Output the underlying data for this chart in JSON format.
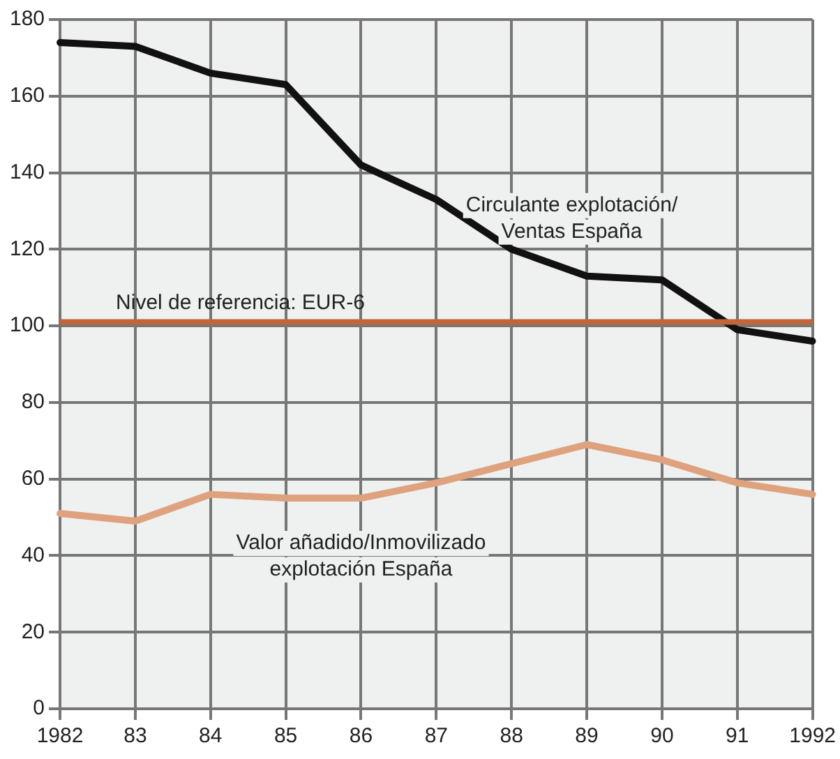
{
  "chart_data": {
    "type": "line",
    "categories": [
      "1982",
      "83",
      "84",
      "85",
      "86",
      "87",
      "88",
      "89",
      "90",
      "91",
      "1992"
    ],
    "series": [
      {
        "name": "Circulante explotación/\nVentas España",
        "color": "#111111",
        "values": [
          174,
          173,
          166,
          163,
          142,
          133,
          120,
          113,
          112,
          99,
          96
        ]
      },
      {
        "name": "Valor añadido/Inmovilizado\nexplotación España",
        "color": "#dfa27e",
        "values": [
          51,
          49,
          56,
          55,
          55,
          59,
          64,
          69,
          65,
          59,
          56
        ]
      }
    ],
    "ylim": [
      0,
      180
    ],
    "yticks": [
      0,
      20,
      40,
      60,
      80,
      100,
      120,
      140,
      160,
      180
    ],
    "ref_lines": [
      {
        "axis": "y",
        "value": 101,
        "label": "Nivel de referencia: EUR-6",
        "color": "#c0663a"
      }
    ],
    "grid": true,
    "legend": false,
    "marker": "none",
    "line_style": "solid"
  }
}
